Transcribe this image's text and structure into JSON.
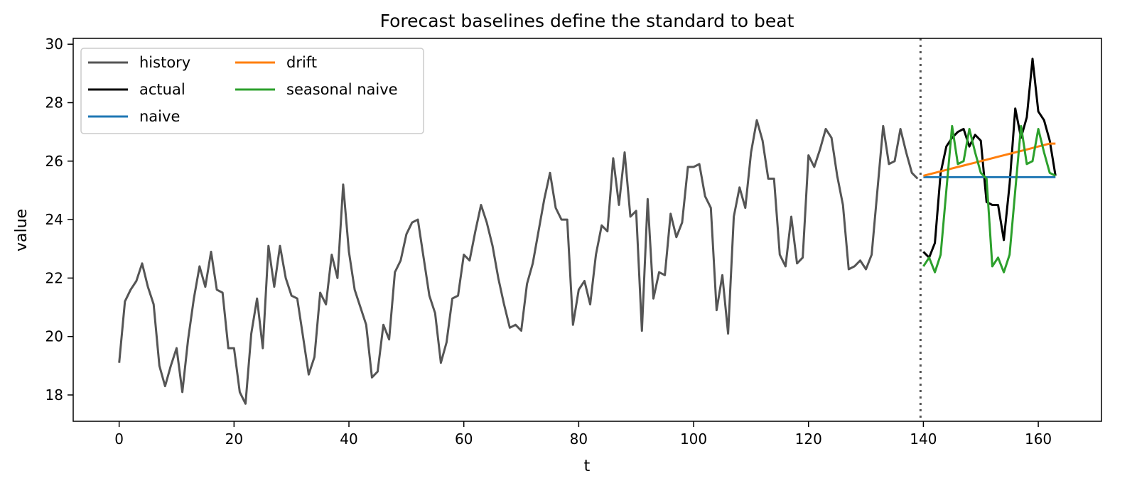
{
  "chart_data": {
    "type": "line",
    "title": "Forecast baselines define the standard to beat",
    "xlabel": "t",
    "ylabel": "value",
    "xlim": [
      -8,
      171
    ],
    "ylim": [
      17.1,
      30.2
    ],
    "xticks": [
      0,
      20,
      40,
      60,
      80,
      100,
      120,
      140,
      160
    ],
    "yticks": [
      18,
      20,
      22,
      24,
      26,
      28,
      30
    ],
    "forecast_origin": 139.5,
    "legend_position": "top-left",
    "legend_columns": 2,
    "series": [
      {
        "name": "history",
        "color": "#555555",
        "x_start": 0,
        "values": [
          19.1,
          21.2,
          21.6,
          21.9,
          22.5,
          21.7,
          21.1,
          19.0,
          18.3,
          19.0,
          19.6,
          18.1,
          19.9,
          21.3,
          22.4,
          21.7,
          22.9,
          21.6,
          21.5,
          19.6,
          19.6,
          18.1,
          17.7,
          20.1,
          21.3,
          19.6,
          23.1,
          21.7,
          23.1,
          22.0,
          21.4,
          21.3,
          20.0,
          18.7,
          19.3,
          21.5,
          21.1,
          22.8,
          22.0,
          25.2,
          22.9,
          21.6,
          21.0,
          20.4,
          18.6,
          18.8,
          20.4,
          19.9,
          22.2,
          22.6,
          23.5,
          23.9,
          24.0,
          22.7,
          21.4,
          20.8,
          19.1,
          19.8,
          21.3,
          21.4,
          22.8,
          22.6,
          23.6,
          24.5,
          23.9,
          23.1,
          22.0,
          21.1,
          20.3,
          20.4,
          20.2,
          21.8,
          22.5,
          23.6,
          24.7,
          25.6,
          24.4,
          24.0,
          24.0,
          20.4,
          21.6,
          21.9,
          21.1,
          22.8,
          23.8,
          23.6,
          26.1,
          24.5,
          26.3,
          24.1,
          24.3,
          20.2,
          24.7,
          21.3,
          22.2,
          22.1,
          24.2,
          23.4,
          23.9,
          25.8,
          25.8,
          25.9,
          24.8,
          24.4,
          20.9,
          22.1,
          20.1,
          24.1,
          25.1,
          24.4,
          26.3,
          27.4,
          26.7,
          25.4,
          25.4,
          22.8,
          22.4,
          24.1,
          22.5,
          22.7,
          26.2,
          25.8,
          26.4,
          27.1,
          26.8,
          25.5,
          24.5,
          22.3,
          22.4,
          22.6,
          22.3,
          22.8,
          25.0,
          27.2,
          25.9,
          26.0,
          27.1,
          26.3,
          25.6,
          25.4
        ]
      },
      {
        "name": "actual",
        "color": "#000000",
        "x_start": 140,
        "values": [
          22.9,
          22.7,
          23.2,
          25.6,
          26.5,
          26.8,
          27.0,
          27.1,
          26.5,
          26.9,
          26.7,
          24.6,
          24.5,
          24.5,
          23.3,
          25.2,
          27.8,
          26.8,
          27.5,
          29.5,
          27.7,
          27.4,
          26.7,
          25.5
        ]
      },
      {
        "name": "naive",
        "color": "#1f77b4",
        "x_start": 140,
        "values": [
          25.45,
          25.45,
          25.45,
          25.45,
          25.45,
          25.45,
          25.45,
          25.45,
          25.45,
          25.45,
          25.45,
          25.45,
          25.45,
          25.45,
          25.45,
          25.45,
          25.45,
          25.45,
          25.45,
          25.45,
          25.45,
          25.45,
          25.45,
          25.45
        ]
      },
      {
        "name": "drift",
        "color": "#ff7f0e",
        "x_start": 140,
        "values": [
          25.5,
          25.55,
          25.6,
          25.65,
          25.7,
          25.75,
          25.8,
          25.85,
          25.9,
          25.95,
          26.0,
          26.05,
          26.1,
          26.15,
          26.2,
          26.25,
          26.3,
          26.35,
          26.4,
          26.45,
          26.5,
          26.55,
          26.6,
          26.6
        ]
      },
      {
        "name": "seasonal naive",
        "color": "#2ca02c",
        "x_start": 140,
        "values": [
          22.4,
          22.7,
          22.2,
          22.8,
          25.0,
          27.2,
          25.9,
          26.0,
          27.1,
          26.3,
          25.6,
          25.4,
          22.4,
          22.7,
          22.2,
          22.8,
          25.0,
          27.2,
          25.9,
          26.0,
          27.1,
          26.3,
          25.6,
          25.5
        ]
      }
    ]
  }
}
